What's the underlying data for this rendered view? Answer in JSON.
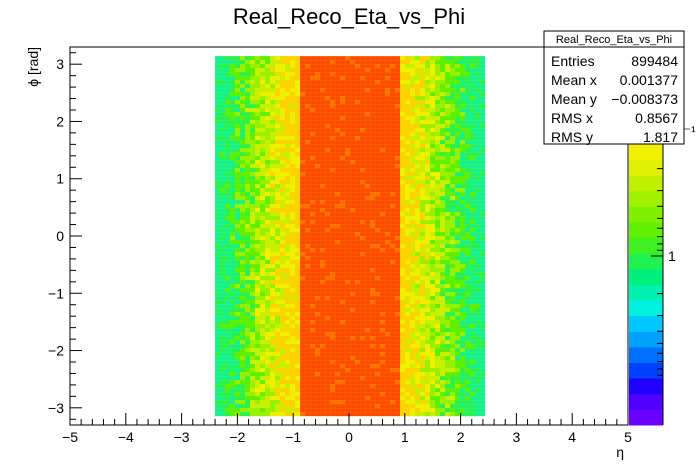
{
  "chart_data": {
    "type": "heatmap",
    "title": "Real_Reco_Eta_vs_Phi",
    "xlabel": "η",
    "ylabel": "ϕ [rad]",
    "xlim": [
      -5,
      5
    ],
    "ylim": [
      -3.3,
      3.3
    ],
    "x_ticks": [
      -5,
      -4,
      -3,
      -2,
      -1,
      0,
      1,
      2,
      3,
      4,
      5
    ],
    "x_tick_labels": [
      "−5",
      "−4",
      "−3",
      "−2",
      "−1",
      "0",
      "1",
      "2",
      "3",
      "4",
      "5"
    ],
    "y_ticks": [
      -3,
      -2,
      -1,
      0,
      1,
      2,
      3
    ],
    "y_tick_labels": [
      "−3",
      "−2",
      "−1",
      "0",
      "1",
      "2",
      "3"
    ],
    "z_scale": "log",
    "z_ticks": [
      {
        "value": 1,
        "label": "1"
      },
      {
        "value": 0.1,
        "label": "10⁻¹"
      }
    ],
    "distribution": {
      "eta_range": [
        -2.4,
        2.4
      ],
      "phi_range": [
        -3.14,
        3.14
      ],
      "core_eta_range": [
        -0.9,
        0.9
      ],
      "core_color": "#ff4a00"
    },
    "stats": {
      "title": "Real_Reco_Eta_vs_Phi",
      "rows": [
        {
          "label": "Entries",
          "value": "899484"
        },
        {
          "label": "Mean x",
          "value": "0.001377"
        },
        {
          "label": "Mean y",
          "value": "−0.008373"
        },
        {
          "label": "RMS x",
          "value": "0.8567"
        },
        {
          "label": "RMS y",
          "value": "1.817"
        }
      ]
    }
  }
}
